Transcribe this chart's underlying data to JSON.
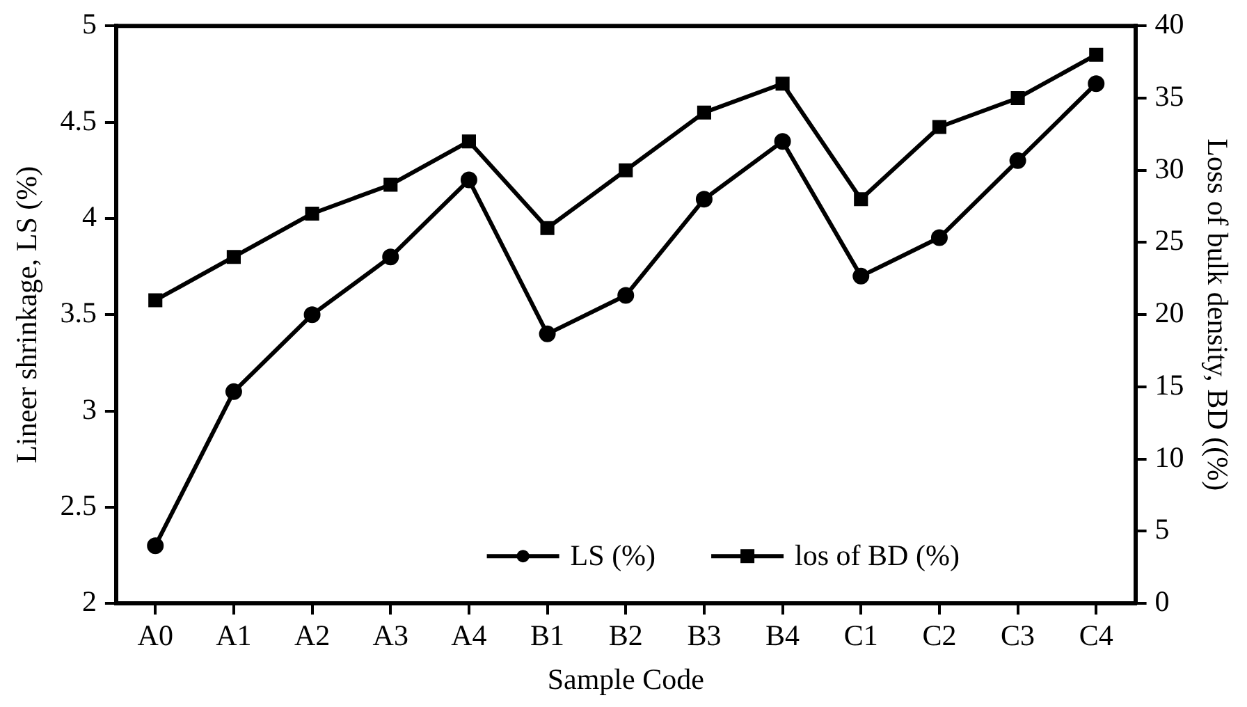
{
  "chart_data": {
    "type": "line",
    "xlabel": "Sample Code",
    "ylabel": "Lineer shrinkage, LS (%)",
    "y2label": "Loss of bulk density, BD ((%)",
    "categories": [
      "A0",
      "A1",
      "A2",
      "A3",
      "A4",
      "B1",
      "B2",
      "B3",
      "B4",
      "C1",
      "C2",
      "C3",
      "C4"
    ],
    "series": [
      {
        "name": "LS (%)",
        "color": "#000000",
        "marker": "circle",
        "values": [
          2.3,
          3.1,
          3.5,
          3.8,
          4.2,
          3.4,
          3.6,
          4.1,
          4.4,
          3.7,
          3.9,
          4.3,
          4.7
        ]
      },
      {
        "name": "los of BD (%)",
        "color": "#000000",
        "marker": "square",
        "axis": "y2",
        "values": [
          21,
          24,
          27,
          29,
          32,
          26,
          30,
          34,
          36,
          28,
          33,
          35,
          38
        ]
      }
    ],
    "ylim": [
      2,
      5
    ],
    "yticks": [
      2,
      2.5,
      3,
      3.5,
      4,
      4.5,
      5
    ],
    "y2lim": [
      0,
      40
    ],
    "y2ticks": [
      0,
      5,
      10,
      15,
      20,
      25,
      30,
      35,
      40
    ],
    "grid": false,
    "legend": "bottom",
    "line_style": "solid"
  }
}
